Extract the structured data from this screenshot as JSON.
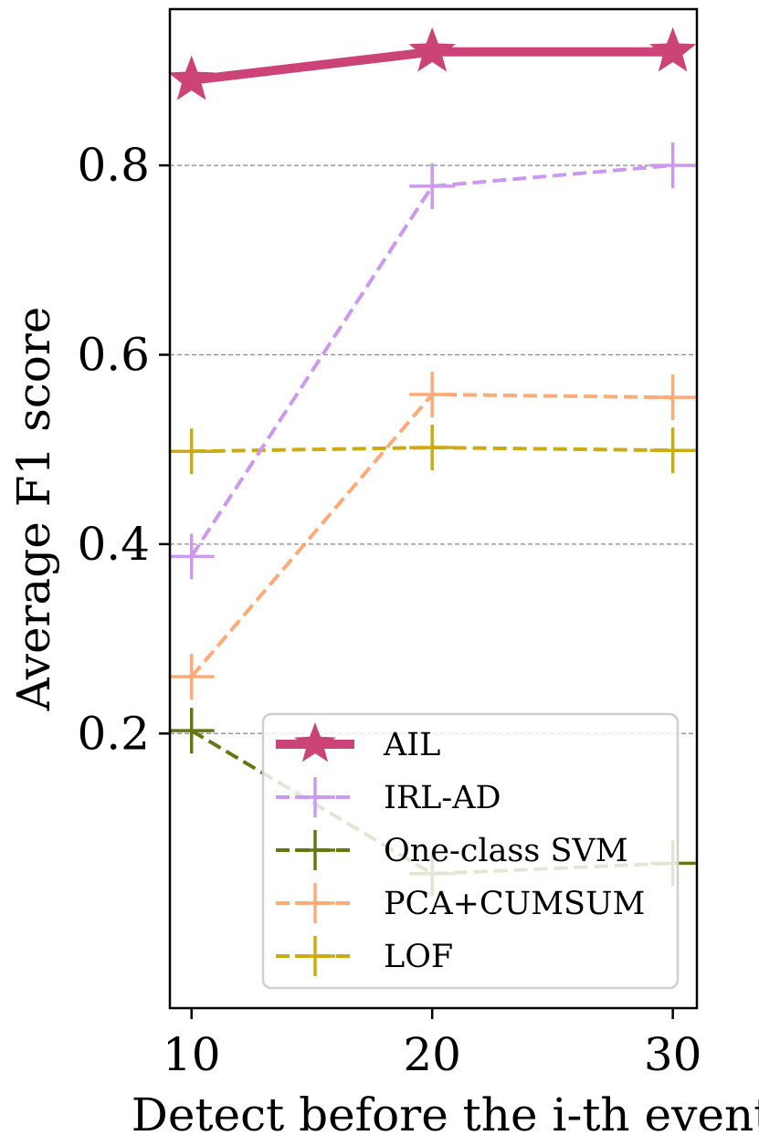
{
  "chart_data": {
    "type": "line",
    "title": "",
    "xlabel": "Detect before the i-th event",
    "ylabel": "Average F1 score",
    "x": [
      10,
      20,
      30
    ],
    "xlim": [
      9.1,
      31
    ],
    "ylim": [
      -0.09,
      0.965
    ],
    "xticks": [
      10,
      20,
      30
    ],
    "xtick_labels": [
      "10",
      "20",
      "30"
    ],
    "yticks": [
      0.2,
      0.4,
      0.6,
      0.8
    ],
    "ytick_labels": [
      "0.2",
      "0.4",
      "0.6",
      "0.8"
    ],
    "grid": "y-dashed",
    "legend_position": "bottom-right",
    "series": [
      {
        "name": "AIL",
        "values": [
          0.89,
          0.92,
          0.92
        ],
        "color": "#cc4477",
        "marker": "star",
        "linestyle": "solid"
      },
      {
        "name": "IRL-AD",
        "values": [
          0.387,
          0.778,
          0.8
        ],
        "color": "#cc99ee",
        "marker": "plus",
        "linestyle": "dashed"
      },
      {
        "name": "One-class SVM",
        "values": [
          0.203,
          0.052,
          0.063
        ],
        "color": "#667711",
        "marker": "plus",
        "linestyle": "dashed"
      },
      {
        "name": "PCA+CUMSUM",
        "values": [
          0.26,
          0.558,
          0.555
        ],
        "color": "#ffaa77",
        "marker": "plus",
        "linestyle": "dashed"
      },
      {
        "name": "LOF",
        "values": [
          0.498,
          0.502,
          0.499
        ],
        "color": "#ccaa11",
        "marker": "plus",
        "linestyle": "dashed"
      }
    ]
  }
}
